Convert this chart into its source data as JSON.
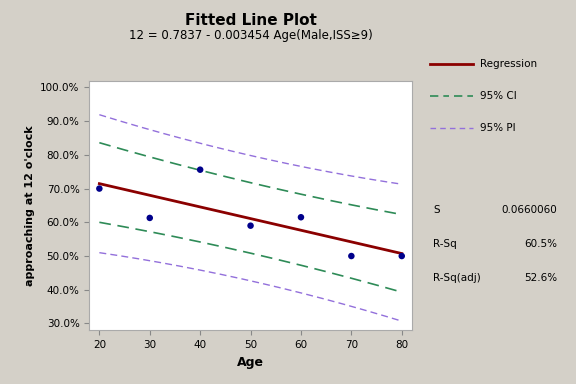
{
  "title": "Fitted Line Plot",
  "subtitle": "12 = 0.7837 - 0.003454 Age(Male,ISS≥9)",
  "xlabel": "Age",
  "ylabel": "approaching at 12 o'clock",
  "bg_color": "#d4d0c8",
  "plot_bg_color": "#ffffff",
  "scatter_x": [
    20,
    30,
    40,
    50,
    60,
    70,
    80
  ],
  "scatter_y": [
    0.7,
    0.613,
    0.756,
    0.59,
    0.615,
    0.5,
    0.5
  ],
  "reg_intercept": 0.7837,
  "reg_slope": -0.003454,
  "x_range": [
    20,
    80
  ],
  "ylim": [
    0.28,
    1.02
  ],
  "yticks": [
    0.3,
    0.4,
    0.5,
    0.6,
    0.7,
    0.8,
    0.9,
    1.0
  ],
  "xticks": [
    20,
    30,
    40,
    50,
    60,
    70,
    80
  ],
  "regression_color": "#8b0000",
  "ci_color": "#2e8b57",
  "pi_color": "#9370db",
  "scatter_color": "#00008b",
  "ci_upper_at_20": 0.836,
  "ci_upper_at_80": 0.623,
  "ci_lower_at_20": 0.6,
  "ci_lower_at_80": 0.393,
  "pi_upper_at_20": 0.919,
  "pi_upper_at_80": 0.713,
  "pi_lower_at_20": 0.51,
  "pi_lower_at_80": 0.307
}
